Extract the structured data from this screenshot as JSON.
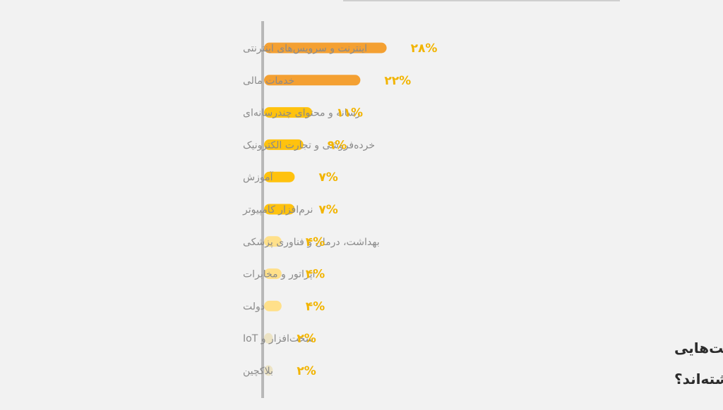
{
  "chart_data": {
    "type": "bar",
    "orientation": "horizontal",
    "title_lines": [
      "کسب‌وکارهای مربوط به چه صنعت‌هایی",
      "حضور پررنگ‌تری در باگ‌بانتی داشته‌اند؟"
    ],
    "categories": [
      "اینترنت و سرویس‌های اینترنتی",
      "خدمات مالی",
      "رسانه و محتوای چندرسانه‌ای",
      "خرده‌فروشی و تجارت الکترونیک",
      "آموزش",
      "نرم‌افزار کامپیوتر",
      "بهداشت، درمان و فناوری پزشکی",
      "اپراتور و مخابرات",
      "دولت",
      "سخت‌افزار و IoT",
      "بلاکچین"
    ],
    "values": [
      28,
      22,
      11,
      9,
      7,
      7,
      4,
      4,
      4,
      2,
      2
    ],
    "value_labels": [
      "۲۸%",
      "۲۲%",
      "۱۱%",
      "۹%",
      "۷%",
      "۷%",
      "۴%",
      "۴%",
      "۴%",
      "۲%",
      "۲%"
    ],
    "bar_colors": [
      "#f4a032",
      "#f4a032",
      "#ffc20e",
      "#ffc20e",
      "#ffc20e",
      "#ffc20e",
      "#ffe08a",
      "#ffe08a",
      "#ffe08a",
      "#ece3c4",
      "#ece3c4"
    ],
    "value_label_color": "#f2b400",
    "axis_color": "#b8b8b8",
    "grid": false,
    "legend": "none"
  }
}
